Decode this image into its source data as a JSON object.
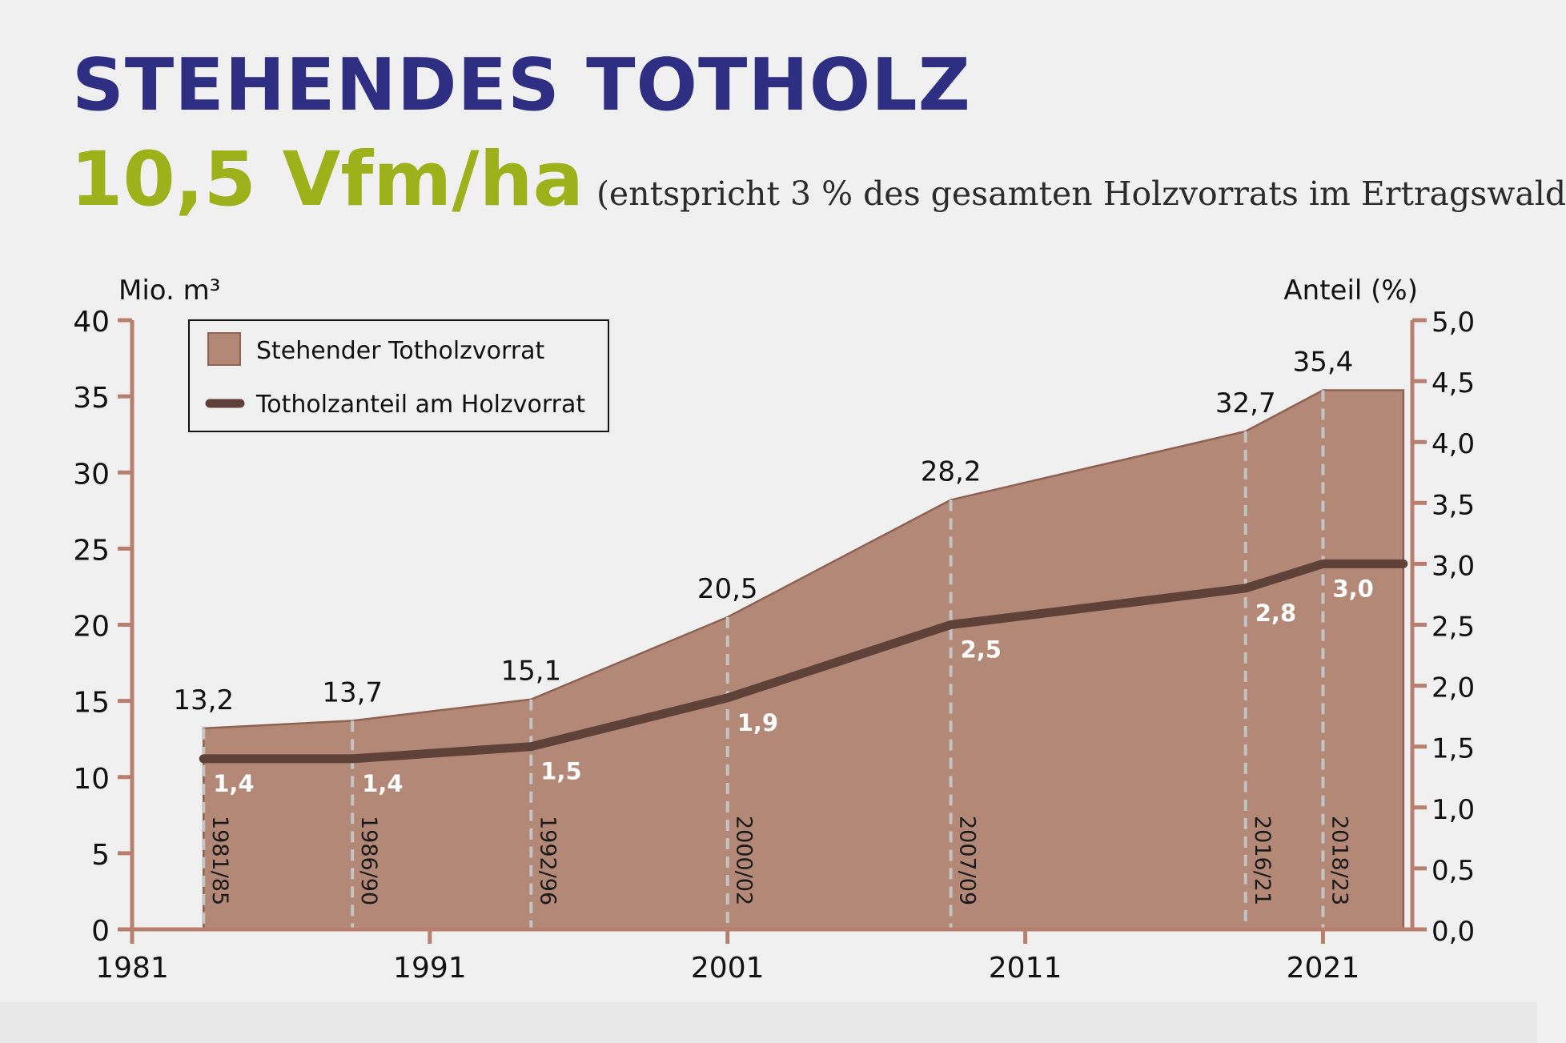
{
  "header": {
    "title": "STEHENDES TOTHOLZ",
    "subtitle_value": "10,5 Vfm/ha",
    "subtitle_note": "(entspricht 3 % des gesamten Holzvorrats im Ertragswald"
  },
  "chart_data": {
    "type": "area",
    "x_axis": {
      "tick_values": [
        1981,
        1991,
        2001,
        2011,
        2021
      ],
      "tick_labels": [
        "1981",
        "1991",
        "2001",
        "2011",
        "2021"
      ],
      "range": [
        1981,
        2024
      ]
    },
    "y_left": {
      "label": "Mio. m³",
      "range": [
        0,
        40
      ],
      "ticks": [
        0,
        5,
        10,
        15,
        20,
        25,
        30,
        35,
        40
      ],
      "tick_labels": [
        "0",
        "5",
        "10",
        "15",
        "20",
        "25",
        "30",
        "35",
        "40"
      ]
    },
    "y_right": {
      "label": "Anteil (%)",
      "range": [
        0,
        5
      ],
      "ticks": [
        0,
        0.5,
        1,
        1.5,
        2,
        2.5,
        3,
        3.5,
        4,
        4.5,
        5
      ],
      "tick_labels": [
        "0,0",
        "0,5",
        "1,0",
        "1,5",
        "2,0",
        "2,5",
        "3,0",
        "3,5",
        "4,0",
        "4,5",
        "5,0"
      ]
    },
    "periods": [
      {
        "label": "1981/85",
        "x": 1983.4,
        "stock": 13.2,
        "stock_label": "13,2",
        "share": 1.4,
        "share_label": "1,4"
      },
      {
        "label": "1986/90",
        "x": 1988.4,
        "stock": 13.7,
        "stock_label": "13,7",
        "share": 1.4,
        "share_label": "1,4"
      },
      {
        "label": "1992/96",
        "x": 1994.4,
        "stock": 15.1,
        "stock_label": "15,1",
        "share": 1.5,
        "share_label": "1,5"
      },
      {
        "label": "2000/02",
        "x": 2001.0,
        "stock": 20.5,
        "stock_label": "20,5",
        "share": 1.9,
        "share_label": "1,9"
      },
      {
        "label": "2007/09",
        "x": 2008.5,
        "stock": 28.2,
        "stock_label": "28,2",
        "share": 2.5,
        "share_label": "2,5"
      },
      {
        "label": "2016/21",
        "x": 2018.4,
        "stock": 32.7,
        "stock_label": "32,7",
        "share": 2.8,
        "share_label": "2,8"
      },
      {
        "label": "2018/23",
        "x": 2021.0,
        "stock": 35.4,
        "stock_label": "35,4",
        "share": 3.0,
        "share_label": "3,0"
      }
    ],
    "extend_to_x": 2023.7,
    "series": [
      {
        "name": "Stehender Totholzvorrat",
        "kind": "area",
        "axis": "left",
        "color": "#b38877"
      },
      {
        "name": "Totholzanteil am Holzvorrat",
        "kind": "line",
        "axis": "right",
        "color": "#5e4138"
      }
    ],
    "legend_placement": "top-left",
    "grid": false,
    "colors": {
      "axis": "#b87f6f",
      "area_edge": "#8f6152",
      "dashed": "#c4c4c4",
      "share_label": "#ffffff"
    }
  }
}
